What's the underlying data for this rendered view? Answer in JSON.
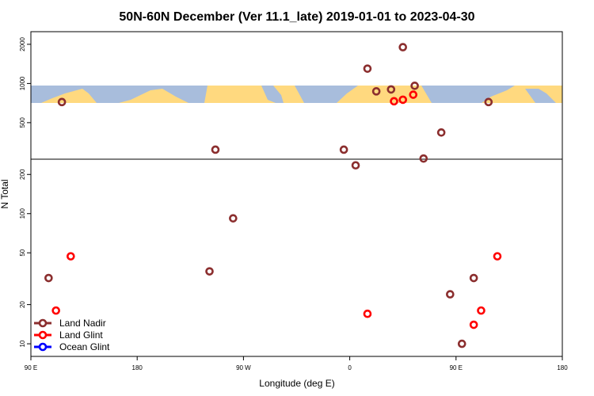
{
  "chart_data": {
    "type": "scatter",
    "title": "50N-60N December (Ver 11.1_late)   2019-01-01 to 2023-04-30",
    "xlabel": "Longitude (deg E)",
    "ylabel": "N Total",
    "xlim": [
      -180,
      180
    ],
    "ylim": [
      8,
      2500
    ],
    "y_scale": "log",
    "grid": false,
    "x_ticks": [
      {
        "value": -180,
        "label": "90 E"
      },
      {
        "value": -108,
        "label": "180"
      },
      {
        "value": -36,
        "label": "90 W"
      },
      {
        "value": 36,
        "label": "0"
      },
      {
        "value": 108,
        "label": "90 E"
      },
      {
        "value": 180,
        "label": "180"
      }
    ],
    "y_ticks": [
      {
        "value": 10,
        "label": "10"
      },
      {
        "value": 20,
        "label": "20"
      },
      {
        "value": 50,
        "label": "50"
      },
      {
        "value": 100,
        "label": "100"
      },
      {
        "value": 200,
        "label": "200"
      },
      {
        "value": 500,
        "label": "500"
      },
      {
        "value": 1000,
        "label": "1000"
      },
      {
        "value": 2000,
        "label": "2000"
      }
    ],
    "map_strip": {
      "label": "world map strip 50N-60N",
      "lat_range": "50N-60N"
    },
    "legend": {
      "position": "bottom-left"
    },
    "series": [
      {
        "name": "Land Nadir",
        "color": "#8b2e2e",
        "points": [
          {
            "x": -159,
            "y": 720
          },
          {
            "x": -168,
            "y": 32
          },
          {
            "x": -55,
            "y": 310
          },
          {
            "x": -43,
            "y": 92
          },
          {
            "x": -59,
            "y": 36
          },
          {
            "x": 32,
            "y": 310
          },
          {
            "x": 40,
            "y": 235
          },
          {
            "x": 48,
            "y": 1300
          },
          {
            "x": 54,
            "y": 870
          },
          {
            "x": 64,
            "y": 900
          },
          {
            "x": 72,
            "y": 1900
          },
          {
            "x": 80,
            "y": 960
          },
          {
            "x": 86,
            "y": 265
          },
          {
            "x": 98,
            "y": 420
          },
          {
            "x": 104,
            "y": 24
          },
          {
            "x": 112,
            "y": 10
          },
          {
            "x": 120,
            "y": 32
          },
          {
            "x": 130,
            "y": 720
          }
        ]
      },
      {
        "name": "Land Glint",
        "color": "#ff0000",
        "points": [
          {
            "x": -153,
            "y": 47
          },
          {
            "x": -163,
            "y": 18
          },
          {
            "x": 48,
            "y": 17
          },
          {
            "x": 66,
            "y": 730
          },
          {
            "x": 72,
            "y": 750
          },
          {
            "x": 79,
            "y": 820
          },
          {
            "x": 120,
            "y": 14
          },
          {
            "x": 125,
            "y": 18
          },
          {
            "x": 136,
            "y": 47
          }
        ]
      },
      {
        "name": "Ocean Glint",
        "color": "#0000ff",
        "points": []
      }
    ]
  }
}
